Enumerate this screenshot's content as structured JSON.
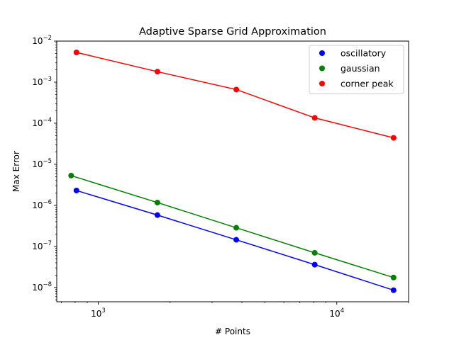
{
  "chart_data": {
    "type": "line",
    "title": "Adaptive Sparse Grid Approximation",
    "xlabel": "# Points",
    "ylabel": "Max Error",
    "xscale": "log",
    "yscale": "log",
    "xlim": [
      670,
      20000
    ],
    "ylim": [
      4.5e-09,
      0.01
    ],
    "x_ticks": [
      {
        "value": 1000,
        "base": "10",
        "exp": "3"
      },
      {
        "value": 10000,
        "base": "10",
        "exp": "4"
      }
    ],
    "y_ticks": [
      {
        "value": 1e-08,
        "base": "10",
        "exp": "−8"
      },
      {
        "value": 1e-07,
        "base": "10",
        "exp": "−7"
      },
      {
        "value": 1e-06,
        "base": "10",
        "exp": "−6"
      },
      {
        "value": 1e-05,
        "base": "10",
        "exp": "−5"
      },
      {
        "value": 0.0001,
        "base": "10",
        "exp": "−4"
      },
      {
        "value": 0.001,
        "base": "10",
        "exp": "−3"
      },
      {
        "value": 0.01,
        "base": "10",
        "exp": "−2"
      }
    ],
    "grid": false,
    "legend_position": "top-right",
    "series": [
      {
        "name": "oscillatory",
        "color": "#0000ff",
        "x": [
          810,
          1770,
          3790,
          8080,
          17300
        ],
        "y": [
          2.3e-06,
          5.8e-07,
          1.45e-07,
          3.6e-08,
          8.6e-09
        ]
      },
      {
        "name": "gaussian",
        "color": "#008000",
        "x": [
          770,
          1770,
          3790,
          8080,
          17300
        ],
        "y": [
          5.3e-06,
          1.17e-06,
          2.85e-07,
          7e-08,
          1.75e-08
        ]
      },
      {
        "name": "corner peak",
        "color": "#ff0000",
        "x": [
          810,
          1770,
          3790,
          8080,
          17300
        ],
        "y": [
          0.0053,
          0.0018,
          0.00066,
          0.000135,
          4.4e-05
        ]
      }
    ]
  }
}
